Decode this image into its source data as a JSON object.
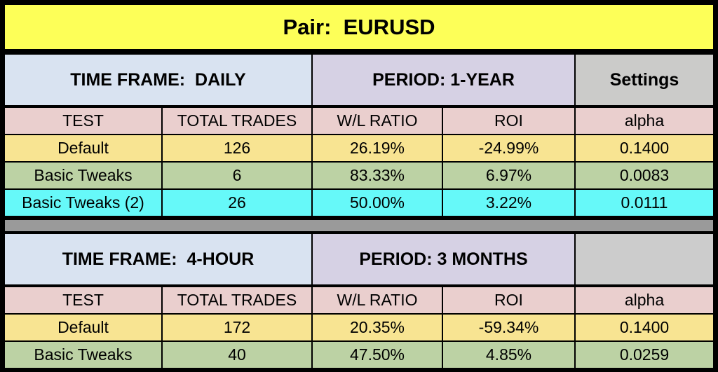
{
  "title": "Pair:  EURUSD",
  "columns": [
    "TEST",
    "TOTAL TRADES",
    "W/L RATIO",
    "ROI",
    "alpha"
  ],
  "sections": [
    {
      "time_frame": "TIME FRAME:  DAILY",
      "period": "PERIOD: 1-YEAR",
      "settings_label": "Settings",
      "rows": [
        {
          "test": "Default",
          "total_trades": "126",
          "wl_ratio": "26.19%",
          "roi": "-24.99%",
          "alpha": "0.1400"
        },
        {
          "test": "Basic Tweaks",
          "total_trades": "6",
          "wl_ratio": "83.33%",
          "roi": "6.97%",
          "alpha": "0.0083"
        },
        {
          "test": "Basic Tweaks (2)",
          "total_trades": "26",
          "wl_ratio": "50.00%",
          "roi": "3.22%",
          "alpha": "0.0111"
        }
      ]
    },
    {
      "time_frame": "TIME FRAME:  4-HOUR",
      "period": "PERIOD: 3 MONTHS",
      "settings_label": "",
      "rows": [
        {
          "test": "Default",
          "total_trades": "172",
          "wl_ratio": "20.35%",
          "roi": "-59.34%",
          "alpha": "0.1400"
        },
        {
          "test": "Basic Tweaks",
          "total_trades": "40",
          "wl_ratio": "47.50%",
          "roi": "4.85%",
          "alpha": "0.0259"
        }
      ]
    }
  ],
  "colors": {
    "title_yellow": "#FDFF58",
    "timeframe_blue": "#D9E3F1",
    "period_purple": "#D6D1E4",
    "settings_gray": "#CBCBC9",
    "header_pink": "#EACFCE",
    "row_yellow": "#F8E492",
    "row_green": "#BCD2A4",
    "row_cyan": "#66F9F9",
    "divider_gray": "#9A9A9A",
    "grid_black": "#000000"
  }
}
